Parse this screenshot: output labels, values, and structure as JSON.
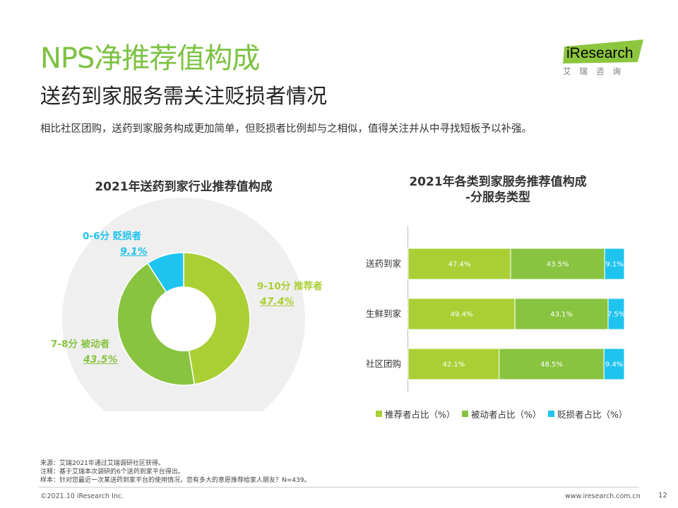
{
  "header": {
    "title": "NPS净推荐值构成",
    "subtitle": "送药到家服务需关注贬损者情况",
    "description": "相比社区团购，送药到家服务构成更加简单，但贬损者比例却与之相似，值得关注并从中寻找短板予以补强。"
  },
  "logo": {
    "main": "iResearch",
    "sub": "艾瑞咨询"
  },
  "colors": {
    "promoter": "#aacf35",
    "passive": "#88c440",
    "detractor": "#1ec4ee",
    "title_green": "#7dc242",
    "donut_bg": "#efefef"
  },
  "chart_data": [
    {
      "type": "pie",
      "title": "2021年送药到家行业推荐值构成",
      "slices": [
        {
          "label": "9-10分 推荐者",
          "value": 47.4,
          "display": "47.4%"
        },
        {
          "label": "7-8分 被动者",
          "value": 43.5,
          "display": "43.5%"
        },
        {
          "label": "0-6分 贬损者",
          "value": 9.1,
          "display": "9.1%"
        }
      ]
    },
    {
      "type": "bar",
      "orientation": "horizontal",
      "stacked": true,
      "title_line1": "2021年各类到家服务推荐值构成",
      "title_line2": "-分服务类型",
      "categories": [
        "送药到家",
        "生鲜到家",
        "社区团购"
      ],
      "series": [
        {
          "name": "推荐者占比（%）",
          "values": [
            47.4,
            49.4,
            42.1
          ],
          "labels": [
            "47.4%",
            "49.4%",
            "42.1%"
          ]
        },
        {
          "name": "被动者占比（%）",
          "values": [
            43.5,
            43.1,
            48.5
          ],
          "labels": [
            "43.5%",
            "43.1%",
            "48.5%"
          ]
        },
        {
          "name": "贬损者占比（%）",
          "values": [
            9.1,
            7.5,
            9.4
          ],
          "labels": [
            "9.1%",
            "7.5%",
            "9.4%"
          ]
        }
      ]
    }
  ],
  "notes": {
    "source": "来源：艾瑞2021年通过艾瑞调研社区获得。",
    "note": "注释：基于艾瑞本次调研的6个送药到家平台得出。",
    "sample": "样本：针对您最近一次某送药到家平台的使用情况，您有多大的意愿推荐给家人朋友？N=439。"
  },
  "footer": {
    "copyright": "©2021.10 iResearch Inc.",
    "website": "www.iresearch.com.cn",
    "page": "12"
  }
}
